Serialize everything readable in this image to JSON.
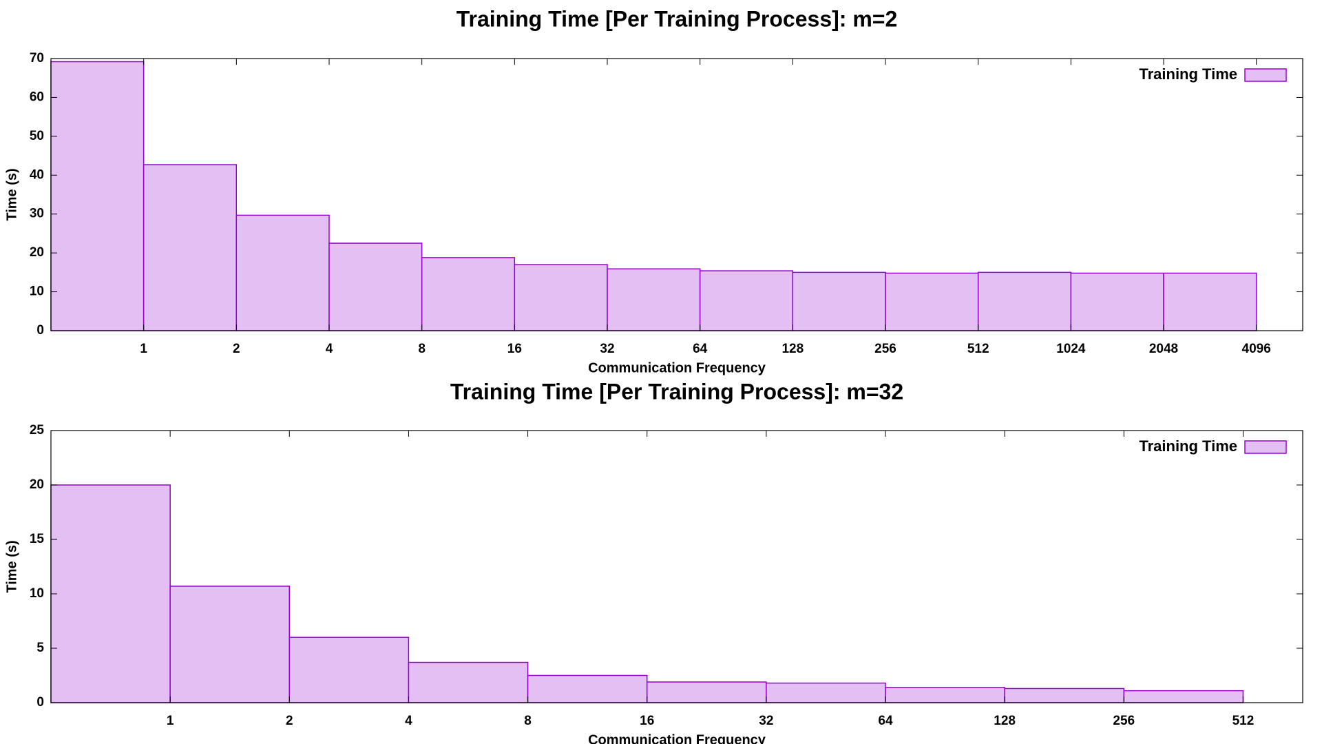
{
  "chart_data": [
    {
      "type": "bar",
      "title": "Training Time [Per Training Process]: m=2",
      "xlabel": "Communication Frequency",
      "ylabel": "Time (s)",
      "ylim": [
        0,
        70
      ],
      "yticks": [
        0,
        10,
        20,
        30,
        40,
        50,
        60,
        70
      ],
      "xtick_labels": [
        "1",
        "2",
        "4",
        "8",
        "16",
        "32",
        "64",
        "128",
        "256",
        "512",
        "1024",
        "2048",
        "4096"
      ],
      "grid": false,
      "legend_position": "top-right",
      "series": [
        {
          "name": "Training Time",
          "color": "#e4bff4",
          "edge_color": "#9400d3",
          "values": [
            69.2,
            42.7,
            29.7,
            22.5,
            18.8,
            17.0,
            15.9,
            15.4,
            15.0,
            14.8,
            15.0,
            14.8,
            14.8
          ]
        }
      ]
    },
    {
      "type": "bar",
      "title": "Training Time [Per Training Process]: m=32",
      "xlabel": "Communication Frequency",
      "ylabel": "Time (s)",
      "ylim": [
        0,
        25
      ],
      "yticks": [
        0,
        5,
        10,
        15,
        20,
        25
      ],
      "xtick_labels": [
        "1",
        "2",
        "4",
        "8",
        "16",
        "32",
        "64",
        "128",
        "256",
        "512"
      ],
      "grid": false,
      "legend_position": "top-right",
      "series": [
        {
          "name": "Training Time",
          "color": "#e4bff4",
          "edge_color": "#9400d3",
          "values": [
            20.0,
            10.7,
            6.0,
            3.7,
            2.5,
            1.9,
            1.8,
            1.4,
            1.3,
            1.1
          ]
        }
      ]
    }
  ]
}
